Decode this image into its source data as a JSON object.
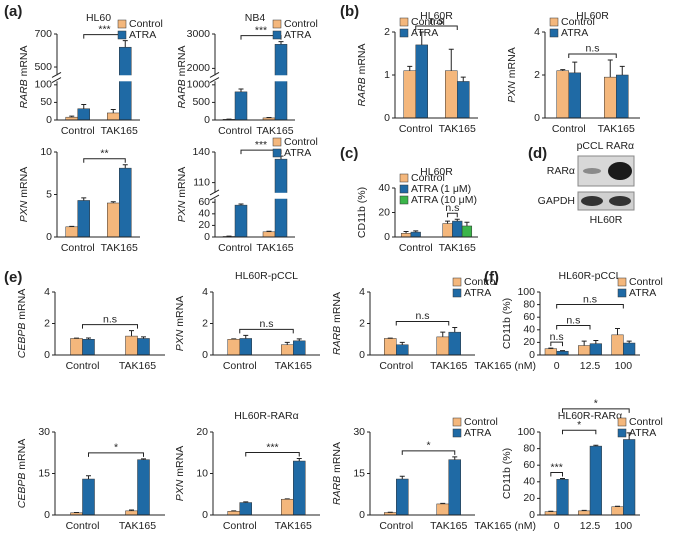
{
  "panel_labels": [
    "(a)",
    "(b)",
    "(c)",
    "(d)",
    "(e)",
    "(f)"
  ],
  "blot": {
    "lanes": [
      "pCCL",
      "RARα"
    ],
    "rows": [
      "RARα",
      "GAPDH"
    ],
    "cell": "HL60R"
  },
  "chart_data": [
    {
      "type": "bar",
      "title": "HL60",
      "ylabel": "RARB mRNA",
      "ylabel_italic": true,
      "categories": [
        "Control",
        "TAK165"
      ],
      "series": [
        {
          "name": "Control",
          "color": "#f4b77c",
          "values": [
            8,
            20
          ],
          "errors": [
            3,
            10
          ]
        },
        {
          "name": "ATRA",
          "color": "#1f6aa5",
          "values": [
            32,
            620
          ],
          "errors": [
            12,
            40
          ]
        }
      ],
      "ylim": [
        0,
        700
      ],
      "yticks": [
        0,
        50,
        100,
        500,
        700
      ],
      "ybreak": [
        110,
        450
      ],
      "legend": "upper right",
      "annotations": [
        "***"
      ]
    },
    {
      "type": "bar",
      "title": "NB4",
      "ylabel": "RARB mRNA",
      "ylabel_italic": true,
      "categories": [
        "Control",
        "TAK165"
      ],
      "series": [
        {
          "name": "Control",
          "color": "#f4b77c",
          "values": [
            20,
            60
          ],
          "errors": [
            5,
            10
          ]
        },
        {
          "name": "ATRA",
          "color": "#1f6aa5",
          "values": [
            800,
            2700
          ],
          "errors": [
            80,
            80
          ]
        }
      ],
      "ylim": [
        0,
        3000
      ],
      "yticks": [
        0,
        500,
        1000,
        2000,
        3000
      ],
      "ybreak": [
        1100,
        1800
      ],
      "legend": "upper right",
      "annotations": [
        "***"
      ]
    },
    {
      "type": "bar",
      "ylabel": "PXN mRNA",
      "ylabel_italic": true,
      "categories": [
        "Control",
        "TAK165"
      ],
      "series": [
        {
          "name": "Control",
          "color": "#f4b77c",
          "values": [
            1.2,
            4.0
          ],
          "errors": [
            0.05,
            0.15
          ]
        },
        {
          "name": "ATRA",
          "color": "#1f6aa5",
          "values": [
            4.3,
            8.1
          ],
          "errors": [
            0.3,
            0.4
          ]
        }
      ],
      "ylim": [
        0,
        10
      ],
      "yticks": [
        0,
        5,
        10
      ],
      "annotations": [
        "**"
      ]
    },
    {
      "type": "bar",
      "ylabel": "PXN mRNA",
      "ylabel_italic": true,
      "categories": [
        "Control",
        "TAK165"
      ],
      "series": [
        {
          "name": "Control",
          "color": "#f4b77c",
          "values": [
            1,
            9
          ],
          "errors": [
            0.5,
            1
          ]
        },
        {
          "name": "ATRA",
          "color": "#1f6aa5",
          "values": [
            55,
            133
          ],
          "errors": [
            2,
            3
          ]
        }
      ],
      "ylim": [
        0,
        140
      ],
      "yticks": [
        0,
        20,
        40,
        60,
        110,
        140
      ],
      "ybreak": [
        66,
        100
      ],
      "legend": "upper right",
      "annotations": [
        "***"
      ]
    },
    {
      "type": "bar",
      "title": "HL60R",
      "ylabel": "RARB mRNA",
      "ylabel_italic": true,
      "categories": [
        "Control",
        "TAK165"
      ],
      "series": [
        {
          "name": "Control",
          "color": "#f4b77c",
          "values": [
            1.1,
            1.1
          ],
          "errors": [
            0.1,
            0.5
          ]
        },
        {
          "name": "ATRA",
          "color": "#1f6aa5",
          "values": [
            1.7,
            0.85
          ],
          "errors": [
            0.3,
            0.1
          ]
        }
      ],
      "ylim": [
        0,
        2
      ],
      "yticks": [
        0,
        1,
        2
      ],
      "legend": "upper left",
      "annotations": [
        "n.s"
      ]
    },
    {
      "type": "bar",
      "title": "HL60R",
      "ylabel": "PXN mRNA",
      "ylabel_italic": true,
      "categories": [
        "Control",
        "TAK165"
      ],
      "series": [
        {
          "name": "Control",
          "color": "#f4b77c",
          "values": [
            2.2,
            1.9
          ],
          "errors": [
            0.05,
            0.8
          ]
        },
        {
          "name": "ATRA",
          "color": "#1f6aa5",
          "values": [
            2.1,
            2.0
          ],
          "errors": [
            0.5,
            0.4
          ]
        }
      ],
      "ylim": [
        0,
        4
      ],
      "yticks": [
        0,
        2,
        4
      ],
      "legend": "upper left",
      "annotations": [
        "n.s"
      ]
    },
    {
      "type": "bar",
      "title": "HL60R",
      "ylabel": "CD11b (%)",
      "ylabel_italic": false,
      "categories": [
        "Control",
        "TAK165"
      ],
      "series": [
        {
          "name": "Control",
          "color": "#f4b77c",
          "values": [
            3,
            11
          ],
          "errors": [
            1.5,
            2
          ]
        },
        {
          "name": "ATRA (1 μM)",
          "color": "#1f6aa5",
          "values": [
            4,
            13
          ],
          "errors": [
            1,
            1.5
          ]
        },
        {
          "name": "ATRA (10 μM)",
          "color": "#3bb54a",
          "values": [
            null,
            9
          ],
          "errors": [
            null,
            3
          ]
        }
      ],
      "ylim": [
        0,
        40
      ],
      "yticks": [
        0,
        20,
        40
      ],
      "legend": "upper left",
      "annotations": [
        "n.s"
      ]
    },
    {
      "type": "bar",
      "ylabel": "CEBPB mRNA",
      "ylabel_italic": true,
      "categories": [
        "Control",
        "TAK165"
      ],
      "series": [
        {
          "name": "Control",
          "color": "#f4b77c",
          "values": [
            1.05,
            1.2
          ],
          "errors": [
            0.02,
            0.35
          ]
        },
        {
          "name": "ATRA",
          "color": "#1f6aa5",
          "values": [
            1.0,
            1.05
          ],
          "errors": [
            0.08,
            0.1
          ]
        }
      ],
      "ylim": [
        0,
        4
      ],
      "yticks": [
        0,
        2,
        4
      ],
      "annotations": [
        "n.s"
      ]
    },
    {
      "type": "bar",
      "title": "HL60R-pCCL",
      "ylabel": "PXN mRNA",
      "ylabel_italic": true,
      "categories": [
        "Control",
        "TAK165"
      ],
      "series": [
        {
          "name": "Control",
          "color": "#f4b77c",
          "values": [
            1.0,
            0.65
          ],
          "errors": [
            0.02,
            0.15
          ]
        },
        {
          "name": "ATRA",
          "color": "#1f6aa5",
          "values": [
            1.05,
            0.9
          ],
          "errors": [
            0.2,
            0.12
          ]
        }
      ],
      "ylim": [
        0,
        4
      ],
      "yticks": [
        0,
        2,
        4
      ],
      "annotations": [
        "n.s"
      ]
    },
    {
      "type": "bar",
      "ylabel": "RARB mRNA",
      "ylabel_italic": true,
      "categories": [
        "Control",
        "TAK165"
      ],
      "series": [
        {
          "name": "Control",
          "color": "#f4b77c",
          "values": [
            1.05,
            1.15
          ],
          "errors": [
            0.02,
            0.3
          ]
        },
        {
          "name": "ATRA",
          "color": "#1f6aa5",
          "values": [
            0.65,
            1.45
          ],
          "errors": [
            0.15,
            0.3
          ]
        }
      ],
      "ylim": [
        0,
        4
      ],
      "yticks": [
        0,
        2,
        4
      ],
      "legend": "upper right",
      "annotations": [
        "n.s"
      ]
    },
    {
      "type": "bar",
      "ylabel": "CEBPB mRNA",
      "ylabel_italic": true,
      "categories": [
        "Control",
        "TAK165"
      ],
      "series": [
        {
          "name": "Control",
          "color": "#f4b77c",
          "values": [
            0.8,
            1.5
          ],
          "errors": [
            0.1,
            0.3
          ]
        },
        {
          "name": "ATRA",
          "color": "#1f6aa5",
          "values": [
            13,
            20
          ],
          "errors": [
            1.2,
            0.3
          ]
        }
      ],
      "ylim": [
        0,
        30
      ],
      "yticks": [
        0,
        15,
        30
      ],
      "annotations": [
        "*"
      ]
    },
    {
      "type": "bar",
      "title": "HL60R-RARα",
      "ylabel": "PXN mRNA",
      "ylabel_italic": true,
      "categories": [
        "Control",
        "TAK165"
      ],
      "series": [
        {
          "name": "Control",
          "color": "#f4b77c",
          "values": [
            0.9,
            3.8
          ],
          "errors": [
            0.1,
            0.1
          ]
        },
        {
          "name": "ATRA",
          "color": "#1f6aa5",
          "values": [
            3.0,
            13
          ],
          "errors": [
            0.15,
            0.6
          ]
        }
      ],
      "ylim": [
        0,
        20
      ],
      "yticks": [
        0,
        10,
        20
      ],
      "annotations": [
        "***"
      ]
    },
    {
      "type": "bar",
      "ylabel": "RARB mRNA",
      "ylabel_italic": true,
      "categories": [
        "Control",
        "TAK165"
      ],
      "series": [
        {
          "name": "Control",
          "color": "#f4b77c",
          "values": [
            0.9,
            4.0
          ],
          "errors": [
            0.1,
            0.2
          ]
        },
        {
          "name": "ATRA",
          "color": "#1f6aa5",
          "values": [
            13,
            20
          ],
          "errors": [
            1,
            1
          ]
        }
      ],
      "ylim": [
        0,
        30
      ],
      "yticks": [
        0,
        15,
        30
      ],
      "legend": "upper right",
      "annotations": [
        "*"
      ]
    },
    {
      "type": "bar",
      "title": "HL60R-pCCL",
      "ylabel": "CD11b (%)",
      "ylabel_italic": false,
      "xlabel": "TAK165 (nM)",
      "categories": [
        "0",
        "12.5",
        "100"
      ],
      "series": [
        {
          "name": "Control",
          "color": "#f4b77c",
          "values": [
            10,
            15,
            32
          ],
          "errors": [
            1,
            7,
            10
          ]
        },
        {
          "name": "ATRA",
          "color": "#1f6aa5",
          "values": [
            6,
            18,
            19
          ],
          "errors": [
            1,
            5,
            3
          ]
        }
      ],
      "ylim": [
        0,
        100
      ],
      "yticks": [
        0,
        20,
        40,
        60,
        80,
        100
      ],
      "legend": "upper right",
      "annotations": [
        "n.s",
        "n.s",
        "n.s"
      ]
    },
    {
      "type": "bar",
      "title": "HL60R-RARα",
      "ylabel": "CD11b (%)",
      "ylabel_italic": false,
      "xlabel": "TAK165 (nM)",
      "categories": [
        "0",
        "12.5",
        "100"
      ],
      "series": [
        {
          "name": "Control",
          "color": "#f4b77c",
          "values": [
            4,
            5,
            10
          ],
          "errors": [
            0.5,
            0.5,
            0.5
          ]
        },
        {
          "name": "ATRA",
          "color": "#1f6aa5",
          "values": [
            43,
            83,
            91
          ],
          "errors": [
            1,
            1,
            8
          ]
        }
      ],
      "ylim": [
        0,
        100
      ],
      "yticks": [
        0,
        20,
        40,
        60,
        80,
        100
      ],
      "legend": "upper right",
      "annotations": [
        "***",
        "*",
        "*"
      ]
    }
  ]
}
